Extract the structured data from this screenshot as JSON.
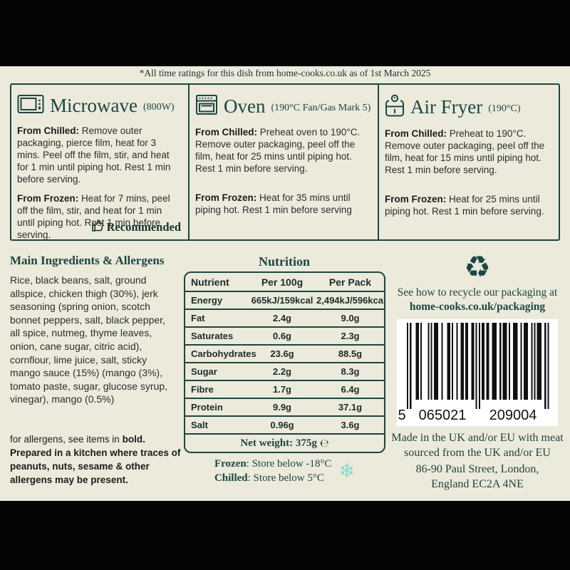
{
  "colors": {
    "background": "#ebeadb",
    "teal": "#1d4643",
    "body_text": "#2d2d2d",
    "snowflake": "#8bd6ce",
    "top_bottom_bars": "#050505",
    "barcode_bg": "#ffffff"
  },
  "footnote": "*All time ratings for this dish from home-cooks.co.uk as of 1st March 2025",
  "cooking": {
    "methods": [
      {
        "name": "Microwave",
        "detail": "(800W)",
        "icon": "microwave-icon",
        "chilled_label": "From Chilled:",
        "chilled": "Remove outer packaging, pierce film, heat for 3 mins. Peel off the film, stir, and heat for 1 min until piping hot. Rest 1 min before serving.",
        "frozen_label": "From Frozen:",
        "frozen": "Heat for 7 mins, peel off the film, stir, and heat for 1 min until piping hot. Rest 1 min before serving.",
        "badge": "Recommended"
      },
      {
        "name": "Oven",
        "detail": "(190°C Fan/Gas Mark 5)",
        "icon": "oven-icon",
        "chilled_label": "From Chilled:",
        "chilled": "Preheat oven to 190°C. Remove outer packaging, peel off the film, heat for 25 mins until piping hot. Rest 1 min before serving.",
        "frozen_label": "From Frozen:",
        "frozen": "Heat for 35 mins until piping hot. Rest 1 min before serving"
      },
      {
        "name": "Air Fryer",
        "detail": "(190°C)",
        "icon": "air-fryer-icon",
        "chilled_label": "From Chilled:",
        "chilled": "Preheat to 190°C. Remove outer packaging, peel off the film, heat for 15 mins until piping hot. Rest 1 min before serving.",
        "frozen_label": "From Frozen:",
        "frozen": "Heat for 25 mins until piping hot. Rest 1 min before serving."
      }
    ]
  },
  "ingredients": {
    "title": "Main Ingredients & Allergens",
    "text": "Rice, black beans, salt, ground allspice, chicken thigh (30%), jerk seasoning (spring onion, scotch bonnet peppers, salt, black pepper, all spice, nutmeg, thyme leaves, onion, cane sugar, citric acid), cornflour, lime juice, salt, sticky mango sauce (15%) (mango (3%), tomato paste, sugar, glucose syrup, vinegar), mango (0.5%)",
    "allergen_note_prefix": "for allergens, see items in ",
    "allergen_note_bold": "bold.",
    "kitchen_warning": "Prepared in a kitchen where traces of peanuts, nuts, sesame & other allergens may be present."
  },
  "nutrition": {
    "title": "Nutrition",
    "headers": [
      "Nutrient",
      "Per 100g",
      "Per Pack"
    ],
    "rows": [
      [
        "Energy",
        "665kJ/159kcal",
        "2,494kJ/596kcal"
      ],
      [
        "Fat",
        "2.4g",
        "9.0g"
      ],
      [
        "Saturates",
        "0.6g",
        "2.3g"
      ],
      [
        "Carbohydrates",
        "23.6g",
        "88.5g"
      ],
      [
        "Sugar",
        "2.2g",
        "8.3g"
      ],
      [
        "Fibre",
        "1.7g",
        "6.4g"
      ],
      [
        "Protein",
        "9.9g",
        "37.1g"
      ],
      [
        "Salt",
        "0.96g",
        "3.6g"
      ]
    ],
    "net_weight_label": "Net weight: 375g",
    "estimated_sign": "℮"
  },
  "storage": {
    "frozen_label": "Frozen",
    "frozen_text": ": Store below -18°C",
    "chilled_label": "Chilled",
    "chilled_text": ": Store below 5°C",
    "snowflake_icon": "❄"
  },
  "recycling": {
    "icon": "♻",
    "line1": "See how to recycle our packaging at",
    "line2": "home-cooks.co.uk/packaging"
  },
  "barcode": {
    "number": "5065021209004",
    "display_groups": [
      "5",
      "065021",
      "209004"
    ]
  },
  "origin": {
    "made_in": "Made in the UK and/or EU with meat sourced from the UK and/or EU",
    "address_line1": "86-90 Paul Street, London,",
    "address_line2": "England EC2A 4NE"
  }
}
